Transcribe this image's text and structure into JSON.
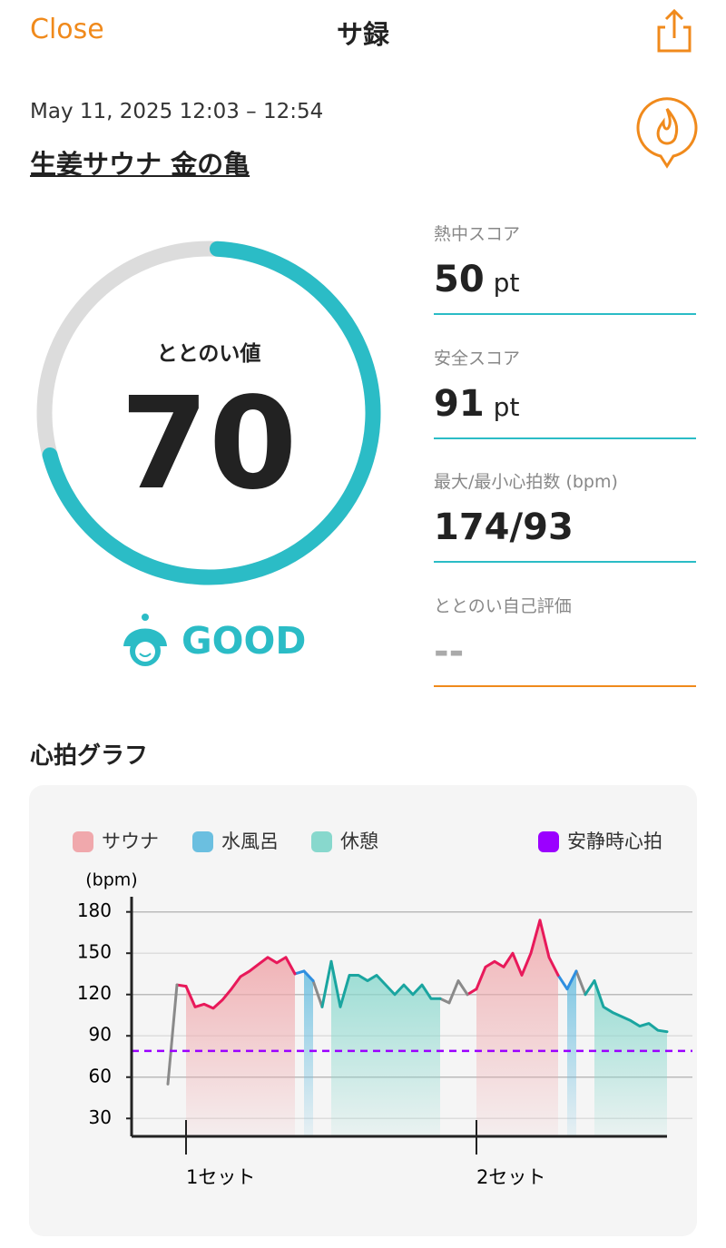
{
  "header": {
    "close": "Close",
    "title": "サ録"
  },
  "session": {
    "datetime": "May 11, 2025 12:03 – 12:54",
    "place": "生姜サウナ 金の亀"
  },
  "score": {
    "label": "ととのい値",
    "value": 70,
    "rating": "GOOD"
  },
  "stats": [
    {
      "label": "熱中スコア",
      "value": 50,
      "unit": "pt"
    },
    {
      "label": "安全スコア",
      "value": 91,
      "unit": "pt"
    },
    {
      "label": "最大/最小心拍数 (bpm)",
      "value": "174/93"
    },
    {
      "label": "ととのい自己評価",
      "value": "--"
    }
  ],
  "section_title": "心拍グラフ",
  "chart_data": {
    "type": "line",
    "y_label": "(bpm)",
    "ylim": [
      17,
      191
    ],
    "yticks": [
      30,
      60,
      90,
      120,
      150,
      180
    ],
    "grid": true,
    "categories": [
      null,
      null,
      null,
      null,
      null,
      null,
      "1セット",
      null,
      null,
      null,
      null,
      null,
      null,
      null,
      null,
      null,
      null,
      null,
      null,
      null,
      null,
      null,
      null,
      null,
      null,
      null,
      null,
      null,
      null,
      null,
      null,
      null,
      null,
      null,
      null,
      null,
      null,
      null,
      "2セット",
      null,
      null,
      null,
      null,
      null,
      null,
      null,
      null,
      null,
      null,
      null,
      null,
      null,
      null,
      null,
      null,
      null,
      null,
      null,
      null,
      null
    ],
    "series": [
      {
        "name": "サウナ",
        "color": "#e8195a",
        "area_color": "#f0a8ac",
        "values": [
          null,
          null,
          null,
          null,
          null,
          null,
          126,
          111,
          113,
          110,
          116,
          124,
          133,
          137,
          142,
          147,
          143,
          147,
          135,
          null,
          null,
          null,
          null,
          null,
          null,
          null,
          null,
          null,
          null,
          null,
          null,
          null,
          null,
          null,
          null,
          null,
          null,
          null,
          124,
          140,
          144,
          140,
          150,
          134,
          150,
          174,
          147,
          134,
          null,
          null,
          null,
          null,
          null,
          null,
          null,
          null,
          null,
          null,
          null,
          null
        ]
      },
      {
        "name": "水風呂",
        "color": "#2f8fe0",
        "area_color": "#6bbfe0",
        "values": [
          null,
          null,
          null,
          null,
          null,
          null,
          null,
          null,
          null,
          null,
          null,
          null,
          null,
          null,
          null,
          null,
          null,
          null,
          null,
          137,
          130,
          null,
          null,
          null,
          null,
          null,
          null,
          null,
          null,
          null,
          null,
          null,
          null,
          null,
          null,
          null,
          null,
          null,
          null,
          null,
          null,
          null,
          null,
          null,
          null,
          null,
          null,
          null,
          124,
          137,
          null,
          null,
          null,
          null,
          null,
          null,
          null,
          null,
          null,
          null
        ]
      },
      {
        "name": "休憩",
        "color": "#1aa5a0",
        "area_color": "#88d8cd",
        "values": [
          null,
          null,
          null,
          null,
          null,
          null,
          null,
          null,
          null,
          null,
          null,
          null,
          null,
          null,
          null,
          null,
          null,
          null,
          null,
          null,
          null,
          null,
          144,
          111,
          134,
          134,
          130,
          134,
          127,
          120,
          127,
          120,
          127,
          117,
          117,
          null,
          null,
          null,
          null,
          null,
          null,
          null,
          null,
          null,
          null,
          null,
          null,
          null,
          null,
          null,
          null,
          130,
          111,
          107,
          104,
          101,
          97,
          99,
          94,
          93
        ]
      },
      {
        "color": "#8a8a8a",
        "values": [
          null,
          null,
          null,
          null,
          55,
          127,
          null,
          null,
          null,
          null,
          null,
          null,
          null,
          null,
          null,
          null,
          null,
          null,
          null,
          null,
          null,
          111,
          null,
          null,
          null,
          null,
          null,
          null,
          null,
          null,
          null,
          null,
          null,
          null,
          null,
          114,
          130,
          120,
          null,
          null,
          null,
          null,
          null,
          null,
          null,
          null,
          null,
          null,
          null,
          null,
          120,
          null,
          null,
          null,
          null,
          null,
          null,
          null,
          null,
          null
        ]
      }
    ],
    "reference_lines": [
      {
        "name": "安静時心拍",
        "color": "#9b00ff",
        "value": 79
      }
    ]
  }
}
